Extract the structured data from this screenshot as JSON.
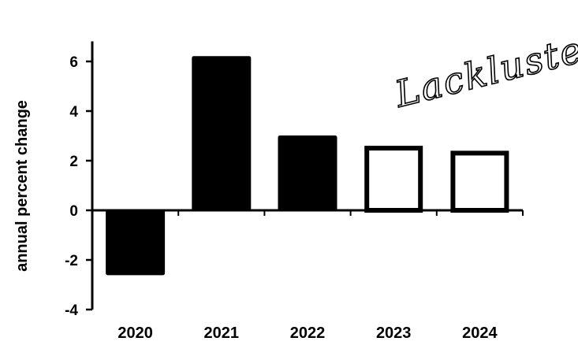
{
  "chart_data": {
    "type": "bar",
    "categories": [
      "2020",
      "2021",
      "2022",
      "2023",
      "2024"
    ],
    "values": [
      -2.6,
      6.2,
      3.0,
      2.6,
      2.4
    ],
    "bar_styles": [
      "filled",
      "filled",
      "filled",
      "outline",
      "outline"
    ],
    "ylabel": "annual percent change",
    "xlabel": "",
    "ylim": [
      -4,
      7
    ],
    "yticks": [
      6,
      4,
      2,
      0,
      -2,
      -4
    ],
    "ytick_labels": [
      "6",
      "4",
      "2",
      "0",
      "-2",
      "-4"
    ],
    "annotation": "Lackluster",
    "grid": false,
    "colors": {
      "bar_fill": "#000000",
      "outline_fill": "#ffffff",
      "axis": "#000000"
    }
  }
}
